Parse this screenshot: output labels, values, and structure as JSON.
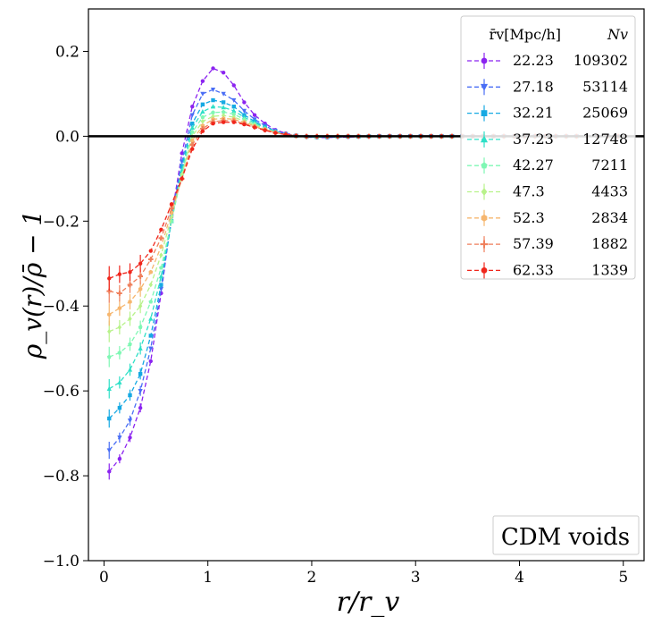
{
  "chart_data": {
    "type": "line",
    "title": "",
    "xlabel": "r/r_v",
    "ylabel": "ρ_v(r)/ρ̄ − 1",
    "xlim": [
      -0.15,
      5.2
    ],
    "ylim": [
      -1.0,
      0.3
    ],
    "xticks": [
      0,
      1,
      2,
      3,
      4,
      5
    ],
    "xtick_labels": [
      "0",
      "1",
      "2",
      "3",
      "4",
      "5"
    ],
    "yticks": [
      -1.0,
      -0.8,
      -0.6,
      -0.4,
      -0.2,
      0.0,
      0.2
    ],
    "ytick_labels": [
      "−1.0",
      "−0.8",
      "−0.6",
      "−0.4",
      "−0.2",
      "0.0",
      "0.2"
    ],
    "reference_line": 0.0,
    "grid": false,
    "legend": {
      "position": "top-right",
      "header_radius": "r̄v[Mpc/h]",
      "header_count": "Nv"
    },
    "annotation": "CDM voids",
    "x": [
      0.05,
      0.15,
      0.25,
      0.35,
      0.45,
      0.55,
      0.65,
      0.75,
      0.85,
      0.95,
      1.05,
      1.15,
      1.25,
      1.35,
      1.45,
      1.55,
      1.65,
      1.75,
      1.85,
      1.95,
      2.05,
      2.15,
      2.25,
      2.35,
      2.45,
      2.55,
      2.65,
      2.75,
      2.85,
      2.95,
      3.05,
      3.15,
      3.25,
      3.35,
      3.45,
      3.55,
      3.65,
      3.75,
      3.85,
      3.95,
      4.05,
      4.15,
      4.25,
      4.35,
      4.45,
      4.55,
      4.65,
      4.75,
      4.85,
      4.95
    ],
    "series": [
      {
        "name": "22.23",
        "count": "109302",
        "color": "#8b23f0",
        "marker": "circle",
        "values": [
          -0.79,
          -0.76,
          -0.71,
          -0.64,
          -0.53,
          -0.37,
          -0.19,
          -0.04,
          0.07,
          0.13,
          0.16,
          0.15,
          0.12,
          0.08,
          0.05,
          0.03,
          0.015,
          0.007,
          0.002,
          -0.002,
          -0.003,
          -0.003,
          -0.002,
          -0.002,
          -0.001,
          -0.001,
          -0.001,
          -0.001,
          0,
          0,
          0,
          0,
          0,
          0,
          0,
          0,
          0,
          0,
          0,
          0,
          0,
          0,
          0,
          0,
          0,
          0,
          0,
          0,
          0,
          0
        ]
      },
      {
        "name": "27.18",
        "count": "53114",
        "color": "#4a6ef5",
        "marker": "tri_down",
        "values": [
          -0.74,
          -0.71,
          -0.67,
          -0.6,
          -0.5,
          -0.36,
          -0.19,
          -0.06,
          0.05,
          0.1,
          0.11,
          0.1,
          0.085,
          0.06,
          0.04,
          0.025,
          0.012,
          0.005,
          0.001,
          -0.002,
          -0.002,
          -0.002,
          -0.002,
          -0.001,
          -0.001,
          -0.001,
          0,
          0,
          0,
          0,
          0,
          0,
          0,
          0,
          0,
          0,
          0,
          0,
          0,
          0,
          0,
          0,
          0,
          0,
          0,
          0,
          0,
          0,
          0,
          0
        ]
      },
      {
        "name": "32.21",
        "count": "25069",
        "color": "#16a9e3",
        "marker": "square",
        "values": [
          -0.665,
          -0.64,
          -0.61,
          -0.56,
          -0.47,
          -0.35,
          -0.2,
          -0.07,
          0.03,
          0.075,
          0.085,
          0.08,
          0.07,
          0.05,
          0.035,
          0.022,
          0.012,
          0.005,
          0.001,
          -0.001,
          -0.002,
          -0.002,
          -0.001,
          -0.001,
          -0.001,
          0,
          0,
          0,
          0,
          0,
          0,
          0,
          0,
          0,
          0,
          0,
          0,
          0,
          0,
          0,
          0,
          0,
          0,
          0,
          0,
          0,
          0,
          0,
          0,
          0
        ]
      },
      {
        "name": "37.23",
        "count": "12748",
        "color": "#2ee0c7",
        "marker": "tri_up",
        "values": [
          -0.595,
          -0.58,
          -0.55,
          -0.5,
          -0.43,
          -0.33,
          -0.2,
          -0.08,
          0.02,
          0.058,
          0.07,
          0.068,
          0.06,
          0.045,
          0.032,
          0.02,
          0.011,
          0.005,
          0.001,
          -0.001,
          -0.002,
          -0.001,
          -0.001,
          -0.001,
          0,
          0,
          0,
          0,
          0,
          0,
          0,
          0,
          0,
          0,
          0,
          0,
          0,
          0,
          0,
          0,
          0,
          0,
          0,
          0,
          0,
          0,
          0,
          0,
          0,
          0
        ]
      },
      {
        "name": "42.27",
        "count": "7211",
        "color": "#7ff7b4",
        "marker": "pentagon",
        "values": [
          -0.52,
          -0.51,
          -0.49,
          -0.45,
          -0.39,
          -0.31,
          -0.2,
          -0.09,
          0.01,
          0.045,
          0.056,
          0.057,
          0.052,
          0.04,
          0.029,
          0.018,
          0.01,
          0.004,
          0.001,
          -0.001,
          -0.001,
          -0.001,
          -0.001,
          0,
          0,
          0,
          0,
          0,
          0,
          0,
          0,
          0,
          0,
          0,
          0,
          0,
          0,
          0,
          0,
          0,
          0,
          0,
          0,
          0,
          0,
          0,
          0,
          0,
          0,
          0
        ]
      },
      {
        "name": "47.3",
        "count": "4433",
        "color": "#b8f28a",
        "marker": "diamond",
        "values": [
          -0.46,
          -0.45,
          -0.43,
          -0.4,
          -0.35,
          -0.28,
          -0.19,
          -0.09,
          0.0,
          0.035,
          0.047,
          0.049,
          0.045,
          0.036,
          0.026,
          0.017,
          0.009,
          0.004,
          0.001,
          -0.001,
          -0.001,
          -0.001,
          0,
          0,
          0,
          0,
          0,
          0,
          0,
          0,
          0,
          0,
          0,
          0,
          0,
          0,
          0,
          0,
          0,
          0,
          0,
          0,
          0,
          0,
          0,
          0,
          0,
          0,
          0,
          0
        ]
      },
      {
        "name": "52.3",
        "count": "2834",
        "color": "#f6b66e",
        "marker": "hexagon",
        "values": [
          -0.42,
          -0.405,
          -0.39,
          -0.36,
          -0.32,
          -0.26,
          -0.18,
          -0.1,
          -0.01,
          0.025,
          0.04,
          0.042,
          0.04,
          0.033,
          0.024,
          0.016,
          0.009,
          0.004,
          0.001,
          -0.001,
          -0.001,
          0,
          0,
          0,
          0,
          0,
          0,
          0,
          0,
          0,
          0,
          0,
          0,
          0,
          0,
          0,
          0,
          0,
          0,
          0,
          0,
          0,
          0,
          0,
          0,
          0,
          0,
          0,
          0,
          0
        ]
      },
      {
        "name": "57.39",
        "count": "1882",
        "color": "#ef7f5b",
        "marker": "plus",
        "values": [
          -0.365,
          -0.37,
          -0.35,
          -0.33,
          -0.29,
          -0.24,
          -0.17,
          -0.1,
          -0.02,
          0.018,
          0.034,
          0.037,
          0.036,
          0.03,
          0.022,
          0.015,
          0.008,
          0.004,
          0.001,
          0,
          0,
          0,
          0,
          0,
          0,
          0,
          0,
          0,
          0,
          0,
          0,
          0,
          0,
          0,
          0,
          0,
          0,
          0,
          0,
          0,
          0,
          0,
          0,
          0,
          0,
          0,
          0,
          0,
          0,
          0
        ]
      },
      {
        "name": "62.33",
        "count": "1339",
        "color": "#f0261c",
        "marker": "circle",
        "values": [
          -0.335,
          -0.325,
          -0.32,
          -0.3,
          -0.27,
          -0.22,
          -0.16,
          -0.1,
          -0.03,
          0.012,
          0.03,
          0.033,
          0.033,
          0.028,
          0.021,
          0.014,
          0.008,
          0.004,
          0.001,
          0,
          0,
          0,
          0,
          0,
          0,
          0,
          0,
          0,
          0,
          0,
          0,
          0,
          0,
          0,
          0,
          0,
          0,
          0,
          0,
          0,
          0,
          0,
          0,
          0,
          0,
          0,
          0,
          0,
          0,
          0
        ]
      }
    ]
  }
}
